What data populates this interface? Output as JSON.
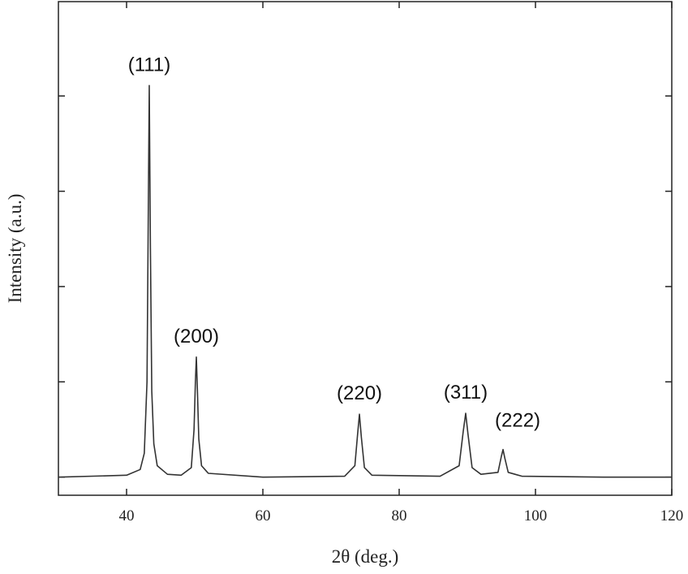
{
  "chart_data": {
    "type": "line",
    "xlabel": "2θ (deg.)",
    "ylabel": "Intensity (a.u.)",
    "x": [
      30,
      40,
      42,
      42.6,
      43.0,
      43.2,
      43.33,
      43.5,
      43.7,
      44.0,
      44.5,
      46,
      48,
      49.5,
      49.9,
      50.1,
      50.24,
      50.4,
      50.6,
      51,
      52,
      60,
      72,
      73.5,
      73.9,
      74.17,
      74.45,
      74.9,
      76,
      86,
      88.8,
      89.4,
      89.76,
      90.1,
      90.7,
      92,
      94.5,
      95.0,
      95.24,
      95.5,
      96,
      98,
      110,
      120
    ],
    "series": [
      {
        "color": "#333333",
        "values": [
          0,
          0.02,
          0.08,
          0.25,
          1.0,
          2.9,
          4.11,
          2.4,
          0.9,
          0.35,
          0.12,
          0.03,
          0.02,
          0.1,
          0.5,
          1.0,
          1.26,
          0.9,
          0.4,
          0.12,
          0.04,
          0,
          0.01,
          0.12,
          0.45,
          0.66,
          0.42,
          0.1,
          0.02,
          0.01,
          0.12,
          0.48,
          0.67,
          0.45,
          0.1,
          0.03,
          0.05,
          0.22,
          0.29,
          0.2,
          0.05,
          0.01,
          0,
          0
        ]
      }
    ],
    "annotations": [
      {
        "text": "(111)",
        "x": 43.33,
        "y": 4.11
      },
      {
        "text": "(200)",
        "x": 50.24,
        "y": 1.26
      },
      {
        "text": "(220)",
        "x": 74.17,
        "y": 0.66
      },
      {
        "text": "(311)",
        "x": 89.76,
        "y": 0.67
      },
      {
        "text": "(222)",
        "x": 95.24,
        "y": 0.29
      }
    ],
    "xlim": [
      30,
      120
    ],
    "xticks": [
      40,
      60,
      80,
      100,
      120
    ],
    "ylim": [
      -0.19,
      4.99
    ],
    "yticks": [
      0,
      1,
      2,
      3,
      4
    ]
  }
}
